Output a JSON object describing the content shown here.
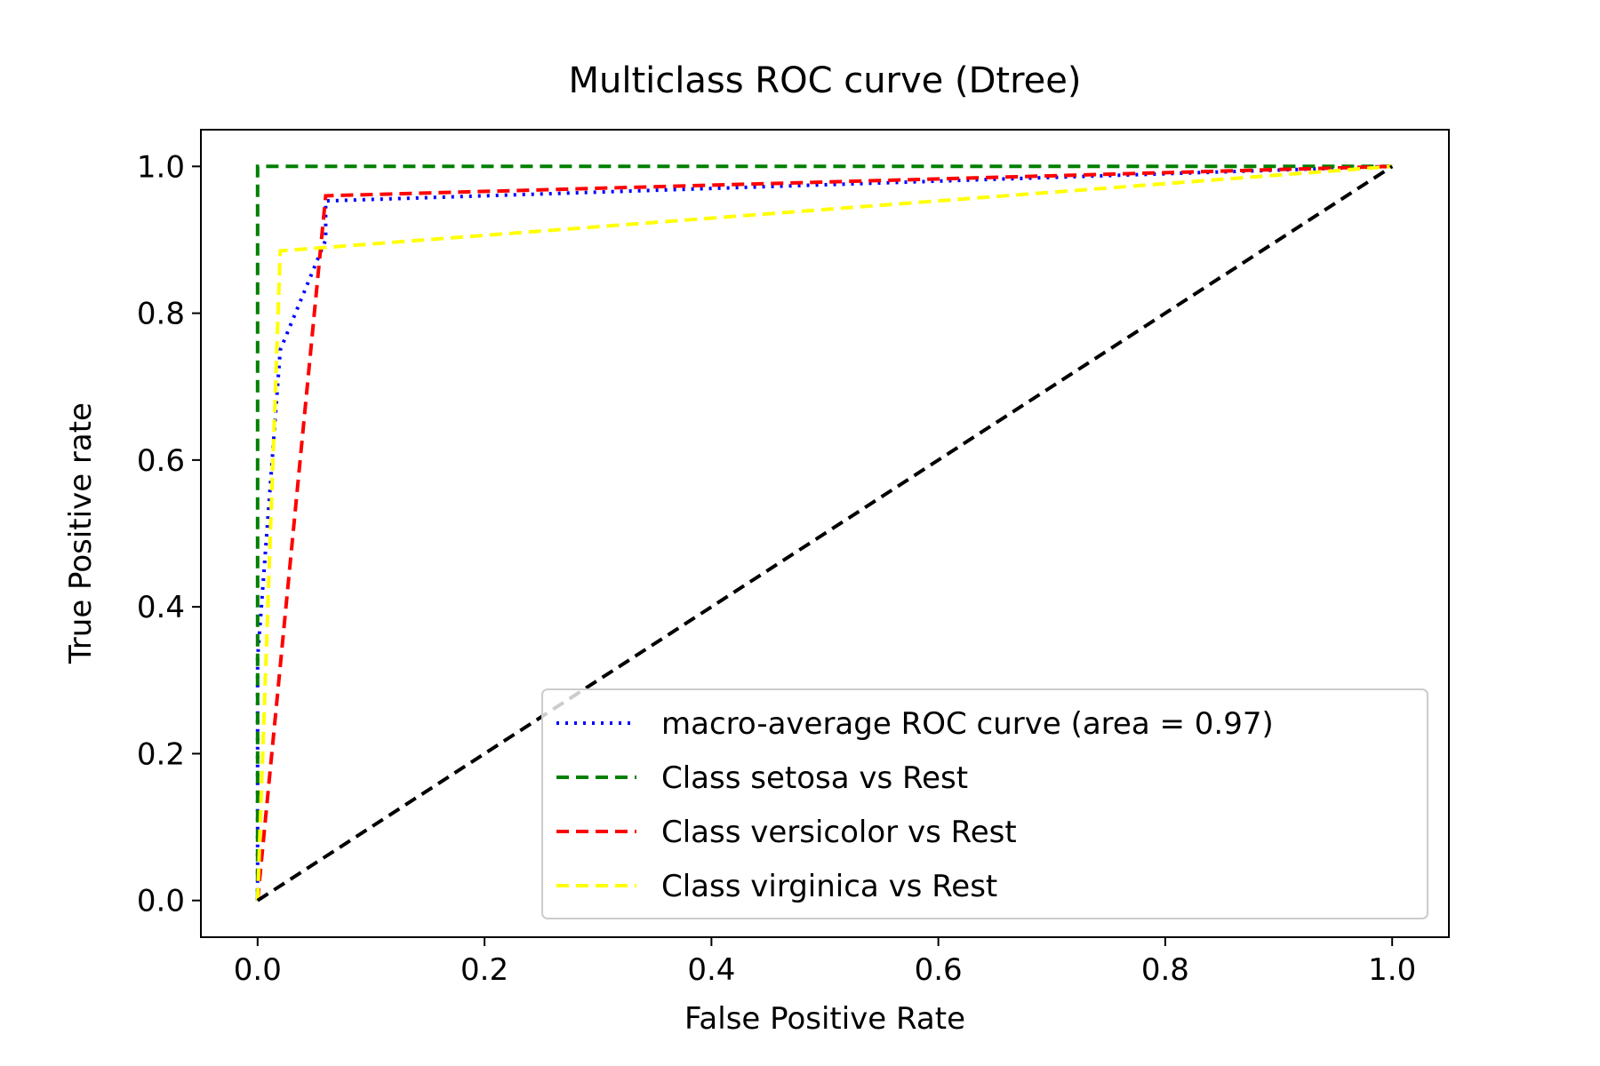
{
  "chart_data": {
    "type": "line",
    "title": "Multiclass ROC curve (Dtree)",
    "xlabel": "False Positive Rate",
    "ylabel": "True Positive rate",
    "xlim": [
      -0.05,
      1.05
    ],
    "ylim": [
      -0.05,
      1.05
    ],
    "xticks": [
      0.0,
      0.2,
      0.4,
      0.6,
      0.8,
      1.0
    ],
    "xtick_labels": [
      "0.0",
      "0.2",
      "0.4",
      "0.6",
      "0.8",
      "1.0"
    ],
    "yticks": [
      0.0,
      0.2,
      0.4,
      0.6,
      0.8,
      1.0
    ],
    "ytick_labels": [
      "0.0",
      "0.2",
      "0.4",
      "0.6",
      "0.8",
      "1.0"
    ],
    "grid": false,
    "legend_location": "lower right",
    "series": [
      {
        "name": "macro-average ROC curve (area = 0.97)",
        "color": "#0000ff",
        "style": "dotted",
        "x": [
          0.0,
          0.0,
          0.02,
          0.06,
          0.06,
          1.0
        ],
        "y": [
          0.0,
          0.33,
          0.75,
          0.9,
          0.953,
          1.0
        ]
      },
      {
        "name": "Class setosa vs Rest",
        "color": "#008000",
        "style": "dashed",
        "x": [
          0.0,
          0.0,
          1.0
        ],
        "y": [
          0.0,
          1.0,
          1.0
        ]
      },
      {
        "name": "Class versicolor vs Rest",
        "color": "#ff0000",
        "style": "dashed",
        "x": [
          0.0,
          0.06,
          1.0
        ],
        "y": [
          0.0,
          0.96,
          1.0
        ]
      },
      {
        "name": "Class virginica vs Rest",
        "color": "#ffff00",
        "style": "dashed",
        "x": [
          0.0,
          0.02,
          1.0
        ],
        "y": [
          0.0,
          0.885,
          1.0
        ]
      },
      {
        "color": "#000000",
        "style": "dashed",
        "x": [
          0.0,
          1.0
        ],
        "y": [
          0.0,
          1.0
        ]
      }
    ]
  }
}
